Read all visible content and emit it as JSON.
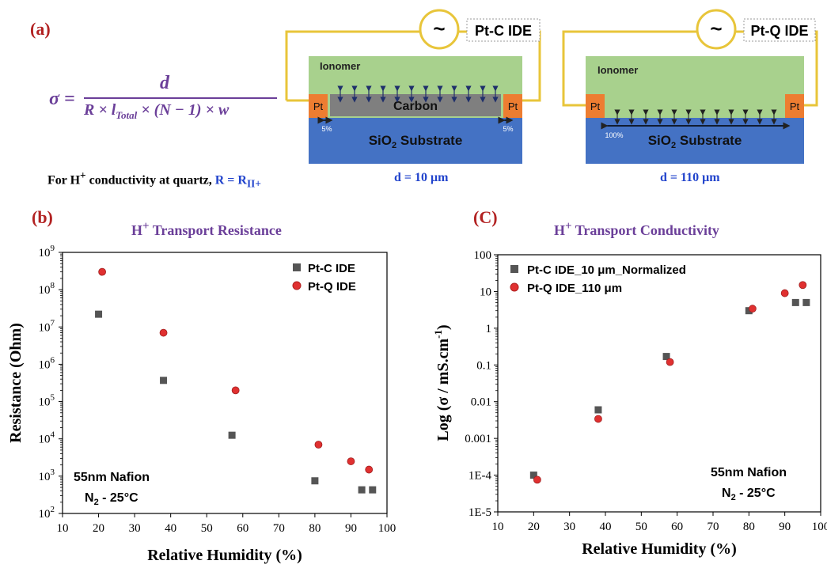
{
  "panel_a": {
    "label": "(a)",
    "formula": {
      "lhs": "σ =",
      "numerator": "d",
      "denominator_parts": [
        "R × l",
        "Total",
        " × (N − 1) × w"
      ]
    },
    "note": {
      "prefix": "For H",
      "prefix_sup": "+",
      "middle": " conductivity at quartz, ",
      "eq": "R = R",
      "eq_sub": "II+"
    },
    "device_left": {
      "source_label": "Pt-C IDE",
      "ionomer": "Ionomer",
      "carbon": "Carbon",
      "pt": "Pt",
      "substrate": "SiO",
      "substrate_sub": "2",
      "substrate_suffix": " Substrate",
      "pct_left": "5%",
      "pct_right": "5%",
      "d_label": "d = 10 μm"
    },
    "device_right": {
      "source_label": "Pt-Q IDE",
      "ionomer": "Ionomer",
      "pt": "Pt",
      "substrate": "SiO",
      "substrate_sub": "2",
      "substrate_suffix": " Substrate",
      "pct": "100%",
      "d_label": "d = 110 μm"
    },
    "colors": {
      "ionomer": "#a8d18d",
      "substrate": "#4472c4",
      "pt": "#ed7d31",
      "carbon": "#7f7f7f",
      "wire": "#e8c53a"
    }
  },
  "chart_data": [
    {
      "panel_label": "(b)",
      "type": "scatter",
      "title_pre": "H",
      "title_sup": "+",
      "title_post": " Transport Resistance",
      "xlabel": "Relative Humidity (%)",
      "ylabel": "Resistance (Ohm)",
      "xlim": [
        10,
        100
      ],
      "xticks": [
        "10",
        "20",
        "30",
        "40",
        "50",
        "60",
        "70",
        "80",
        "90",
        "100"
      ],
      "yscale": "log",
      "ylim_exp": [
        2,
        9
      ],
      "ytick_base": "10",
      "yticks_exp": [
        "2",
        "3",
        "4",
        "5",
        "6",
        "7",
        "8",
        "9"
      ],
      "annotation_lines": [
        "55nm Nafion",
        "N",
        "2",
        " - 25°C"
      ],
      "legend_position": "top-right",
      "series": [
        {
          "name": "Pt-C IDE",
          "marker": "square",
          "color": "#555555",
          "x": [
            20,
            38,
            57,
            80,
            93,
            96
          ],
          "y": [
            22000000,
            370000,
            12500,
            750,
            430,
            430
          ]
        },
        {
          "name": "Pt-Q IDE",
          "marker": "circle",
          "color": "#e03030",
          "x": [
            21,
            38,
            58,
            81,
            90,
            95
          ],
          "y": [
            300000000,
            7000000,
            200000,
            7000,
            2500,
            1500
          ]
        }
      ]
    },
    {
      "panel_label": "(C)",
      "type": "scatter",
      "title_pre": "H",
      "title_sup": "+",
      "title_post": " Transport Conductivity",
      "xlabel": "Relative Humidity (%)",
      "ylabel_pre": "Log (σ / mS.cm",
      "ylabel_sup": "-1",
      "ylabel_post": ")",
      "xlim": [
        10,
        100
      ],
      "xticks": [
        "10",
        "20",
        "30",
        "40",
        "50",
        "60",
        "70",
        "80",
        "90",
        "100"
      ],
      "yscale": "log",
      "ylim": [
        1e-05,
        100
      ],
      "yticks": [
        "1E-5",
        "1E-4",
        "0.001",
        "0.01",
        "0.1",
        "1",
        "10",
        "100"
      ],
      "annotation_lines": [
        "55nm Nafion",
        "N",
        "2",
        " - 25°C"
      ],
      "legend_position": "top-left",
      "series": [
        {
          "name": "Pt-C IDE_10 μm_Normalized",
          "marker": "square",
          "color": "#555555",
          "x": [
            20,
            38,
            57,
            80,
            93,
            96
          ],
          "y": [
            0.0001,
            0.006,
            0.17,
            3.0,
            5.0,
            5.0
          ]
        },
        {
          "name": "Pt-Q IDE_110 μm",
          "marker": "circle",
          "color": "#e03030",
          "x": [
            21,
            38,
            58,
            81,
            90,
            95
          ],
          "y": [
            7.5e-05,
            0.0034,
            0.12,
            3.4,
            9.0,
            15.0
          ]
        }
      ]
    }
  ]
}
